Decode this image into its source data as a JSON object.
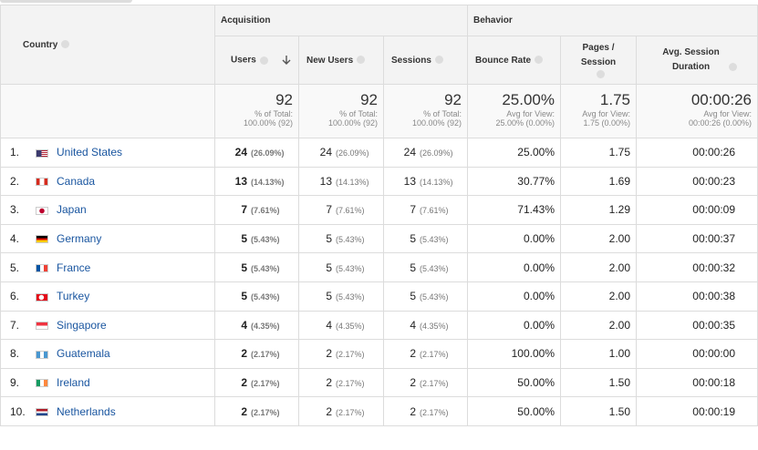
{
  "table": {
    "country_header": "Country",
    "groups": [
      "Acquisition",
      "Behavior"
    ],
    "columns": [
      "Users",
      "New Users",
      "Sessions",
      "Bounce Rate",
      "Pages / Session",
      "Avg. Session Duration"
    ],
    "totals": [
      {
        "value": "92",
        "note": "% of Total:",
        "sub": "100.00% (92)"
      },
      {
        "value": "92",
        "note": "% of Total:",
        "sub": "100.00% (92)"
      },
      {
        "value": "92",
        "note": "% of Total:",
        "sub": "100.00% (92)"
      },
      {
        "value": "25.00%",
        "note": "Avg for View:",
        "sub": "25.00% (0.00%)"
      },
      {
        "value": "1.75",
        "note": "Avg for View:",
        "sub": "1.75 (0.00%)"
      },
      {
        "value": "00:00:26",
        "note": "Avg for View:",
        "sub": "00:00:26 (0.00%)"
      }
    ],
    "rows": [
      {
        "index": "1.",
        "country": "United States",
        "users": [
          "24",
          "(26.09%)"
        ],
        "new_users": [
          "24",
          "(26.09%)"
        ],
        "sessions": [
          "24",
          "(26.09%)"
        ],
        "bounce_rate": "25.00%",
        "pages": "1.75",
        "duration": "00:00:26"
      },
      {
        "index": "2.",
        "country": "Canada",
        "users": [
          "13",
          "(14.13%)"
        ],
        "new_users": [
          "13",
          "(14.13%)"
        ],
        "sessions": [
          "13",
          "(14.13%)"
        ],
        "bounce_rate": "30.77%",
        "pages": "1.69",
        "duration": "00:00:23"
      },
      {
        "index": "3.",
        "country": "Japan",
        "users": [
          "7",
          "(7.61%)"
        ],
        "new_users": [
          "7",
          "(7.61%)"
        ],
        "sessions": [
          "7",
          "(7.61%)"
        ],
        "bounce_rate": "71.43%",
        "pages": "1.29",
        "duration": "00:00:09"
      },
      {
        "index": "4.",
        "country": "Germany",
        "users": [
          "5",
          "(5.43%)"
        ],
        "new_users": [
          "5",
          "(5.43%)"
        ],
        "sessions": [
          "5",
          "(5.43%)"
        ],
        "bounce_rate": "0.00%",
        "pages": "2.00",
        "duration": "00:00:37"
      },
      {
        "index": "5.",
        "country": "France",
        "users": [
          "5",
          "(5.43%)"
        ],
        "new_users": [
          "5",
          "(5.43%)"
        ],
        "sessions": [
          "5",
          "(5.43%)"
        ],
        "bounce_rate": "0.00%",
        "pages": "2.00",
        "duration": "00:00:32"
      },
      {
        "index": "6.",
        "country": "Turkey",
        "users": [
          "5",
          "(5.43%)"
        ],
        "new_users": [
          "5",
          "(5.43%)"
        ],
        "sessions": [
          "5",
          "(5.43%)"
        ],
        "bounce_rate": "0.00%",
        "pages": "2.00",
        "duration": "00:00:38"
      },
      {
        "index": "7.",
        "country": "Singapore",
        "users": [
          "4",
          "(4.35%)"
        ],
        "new_users": [
          "4",
          "(4.35%)"
        ],
        "sessions": [
          "4",
          "(4.35%)"
        ],
        "bounce_rate": "0.00%",
        "pages": "2.00",
        "duration": "00:00:35"
      },
      {
        "index": "8.",
        "country": "Guatemala",
        "users": [
          "2",
          "(2.17%)"
        ],
        "new_users": [
          "2",
          "(2.17%)"
        ],
        "sessions": [
          "2",
          "(2.17%)"
        ],
        "bounce_rate": "100.00%",
        "pages": "1.00",
        "duration": "00:00:00"
      },
      {
        "index": "9.",
        "country": "Ireland",
        "users": [
          "2",
          "(2.17%)"
        ],
        "new_users": [
          "2",
          "(2.17%)"
        ],
        "sessions": [
          "2",
          "(2.17%)"
        ],
        "bounce_rate": "50.00%",
        "pages": "1.50",
        "duration": "00:00:18"
      },
      {
        "index": "10.",
        "country": "Netherlands",
        "users": [
          "2",
          "(2.17%)"
        ],
        "new_users": [
          "2",
          "(2.17%)"
        ],
        "sessions": [
          "2",
          "(2.17%)"
        ],
        "bounce_rate": "50.00%",
        "pages": "1.50",
        "duration": "00:00:19"
      }
    ]
  }
}
